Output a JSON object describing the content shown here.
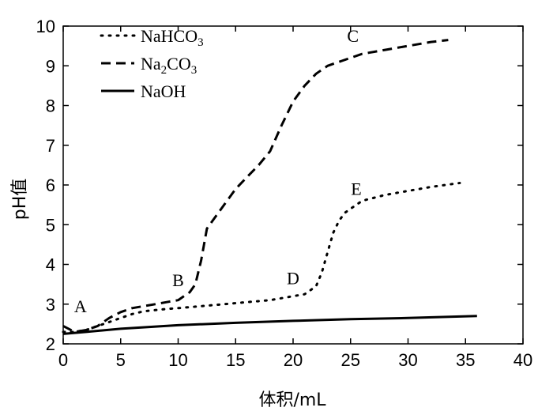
{
  "chart_data": {
    "type": "line",
    "xlabel": "体积/mL",
    "ylabel": "pH值",
    "xlim": [
      0,
      40
    ],
    "ylim": [
      2,
      10
    ],
    "xticks": [
      0,
      5,
      10,
      15,
      20,
      25,
      30,
      35,
      40
    ],
    "yticks": [
      2,
      3,
      4,
      5,
      6,
      7,
      8,
      9,
      10
    ],
    "grid": false,
    "legend": "top-left",
    "series": [
      {
        "key": "nahco3",
        "name": "NaHCO3",
        "name_main": "NaHCO",
        "name_sub": "3",
        "style": "dotted",
        "x": [
          0,
          1,
          2,
          3,
          4,
          5,
          6,
          7,
          8,
          9,
          10,
          12,
          14,
          16,
          18,
          20,
          21,
          22,
          22.5,
          23,
          23.5,
          24,
          24.5,
          25,
          26,
          28,
          30,
          32,
          34.5
        ],
        "y": [
          2.3,
          2.3,
          2.35,
          2.45,
          2.55,
          2.65,
          2.75,
          2.82,
          2.85,
          2.88,
          2.9,
          2.95,
          3.0,
          3.05,
          3.1,
          3.2,
          3.25,
          3.45,
          3.8,
          4.3,
          4.8,
          5.1,
          5.3,
          5.4,
          5.6,
          5.75,
          5.85,
          5.95,
          6.05
        ]
      },
      {
        "key": "na2co3",
        "name": "Na2CO3",
        "name_main1": "Na",
        "name_sub1": "2",
        "name_main2": "CO",
        "name_sub2": "3",
        "style": "dashed",
        "x": [
          0,
          1,
          2,
          3,
          4,
          5,
          6,
          7,
          8,
          9,
          10,
          11,
          11.5,
          12,
          12.5,
          13,
          14,
          15,
          16,
          17,
          18,
          19,
          19.5,
          20,
          21,
          22,
          23,
          24,
          25,
          26,
          28,
          30,
          32,
          33.5
        ],
        "y": [
          2.45,
          2.3,
          2.35,
          2.45,
          2.65,
          2.8,
          2.9,
          2.95,
          3.0,
          3.05,
          3.1,
          3.3,
          3.5,
          4.1,
          4.9,
          5.1,
          5.5,
          5.9,
          6.2,
          6.5,
          6.85,
          7.5,
          7.8,
          8.1,
          8.5,
          8.8,
          9.0,
          9.1,
          9.2,
          9.3,
          9.4,
          9.5,
          9.6,
          9.65
        ]
      },
      {
        "key": "naoh",
        "name": "NaOH",
        "style": "solid",
        "x": [
          0,
          2,
          5,
          10,
          15,
          20,
          25,
          30,
          36
        ],
        "y": [
          2.25,
          2.3,
          2.38,
          2.47,
          2.53,
          2.58,
          2.62,
          2.65,
          2.7
        ]
      }
    ],
    "annotations": [
      {
        "label": "A",
        "x": 1.5,
        "y": 2.8
      },
      {
        "label": "B",
        "x": 10,
        "y": 3.45
      },
      {
        "label": "C",
        "x": 25.2,
        "y": 9.6
      },
      {
        "label": "D",
        "x": 20,
        "y": 3.5
      },
      {
        "label": "E",
        "x": 25.5,
        "y": 5.75
      }
    ]
  }
}
